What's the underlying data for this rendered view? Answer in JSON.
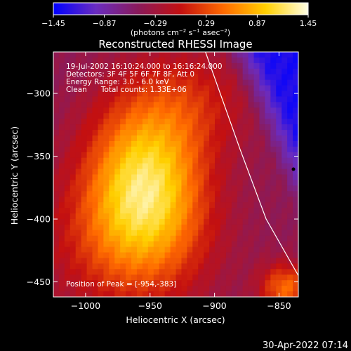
{
  "chart_data": {
    "type": "heatmap",
    "title": "Reconstructed RHESSI Image",
    "xlabel": "Heliocentric X (arcsec)",
    "ylabel": "Heliocentric Y (arcsec)",
    "xlim": [
      -1025,
      -835
    ],
    "ylim": [
      -462,
      -267
    ],
    "x_ticks": [
      -1000,
      -950,
      -900,
      -850
    ],
    "y_ticks": [
      -300,
      -350,
      -400,
      -450
    ],
    "x_tick_labels": [
      "−1000",
      "−950",
      "−900",
      "−850"
    ],
    "y_tick_labels": [
      "−300",
      "−350",
      "−400",
      "−450"
    ],
    "colorbar": {
      "min": -1.45,
      "max": 1.45,
      "ticks": [
        -1.45,
        -0.87,
        -0.29,
        0.29,
        0.87,
        1.45
      ],
      "tick_labels": [
        "−1.45",
        "−0.87",
        "−0.29",
        "0.29",
        "0.87",
        "1.45"
      ],
      "unit_parts": [
        "(photons cm",
        "−2",
        " s",
        "−1",
        " asec",
        "−2",
        ")"
      ],
      "colors": [
        "#0000ff",
        "#6a2cc0",
        "#8a1a5a",
        "#c41010",
        "#ff6a00",
        "#ffd000",
        "#ffffe6"
      ]
    },
    "annotations": [
      "19-Jul-2002 16:10:24.000 to 16:16:24.000",
      "Detectors: 3F 4F 5F 6F 7F 8F, Att 0",
      "Energy Range: 3.0 - 6.0 keV",
      "Clean      Total counts: 1.33E+06"
    ],
    "peak_label": "Position of Peak = [-954,-383]",
    "peak": [
      -954,
      -383
    ],
    "sources": [
      {
        "x": -954,
        "y": -370,
        "sx": 32,
        "sy": 48,
        "amp": 1.45
      },
      {
        "x": -970,
        "y": -420,
        "sx": 48,
        "sy": 42,
        "amp": 0.5
      },
      {
        "x": -915,
        "y": -305,
        "sx": 32,
        "sy": 30,
        "amp": 0.4
      },
      {
        "x": -845,
        "y": -455,
        "sx": 14,
        "sy": 14,
        "amp": 0.9
      }
    ],
    "limb": [
      [
        -907,
        -267
      ],
      [
        -880,
        -345
      ],
      [
        -860,
        -400
      ],
      [
        -835,
        -445
      ]
    ],
    "footer": "30-Apr-2022 07:14"
  }
}
